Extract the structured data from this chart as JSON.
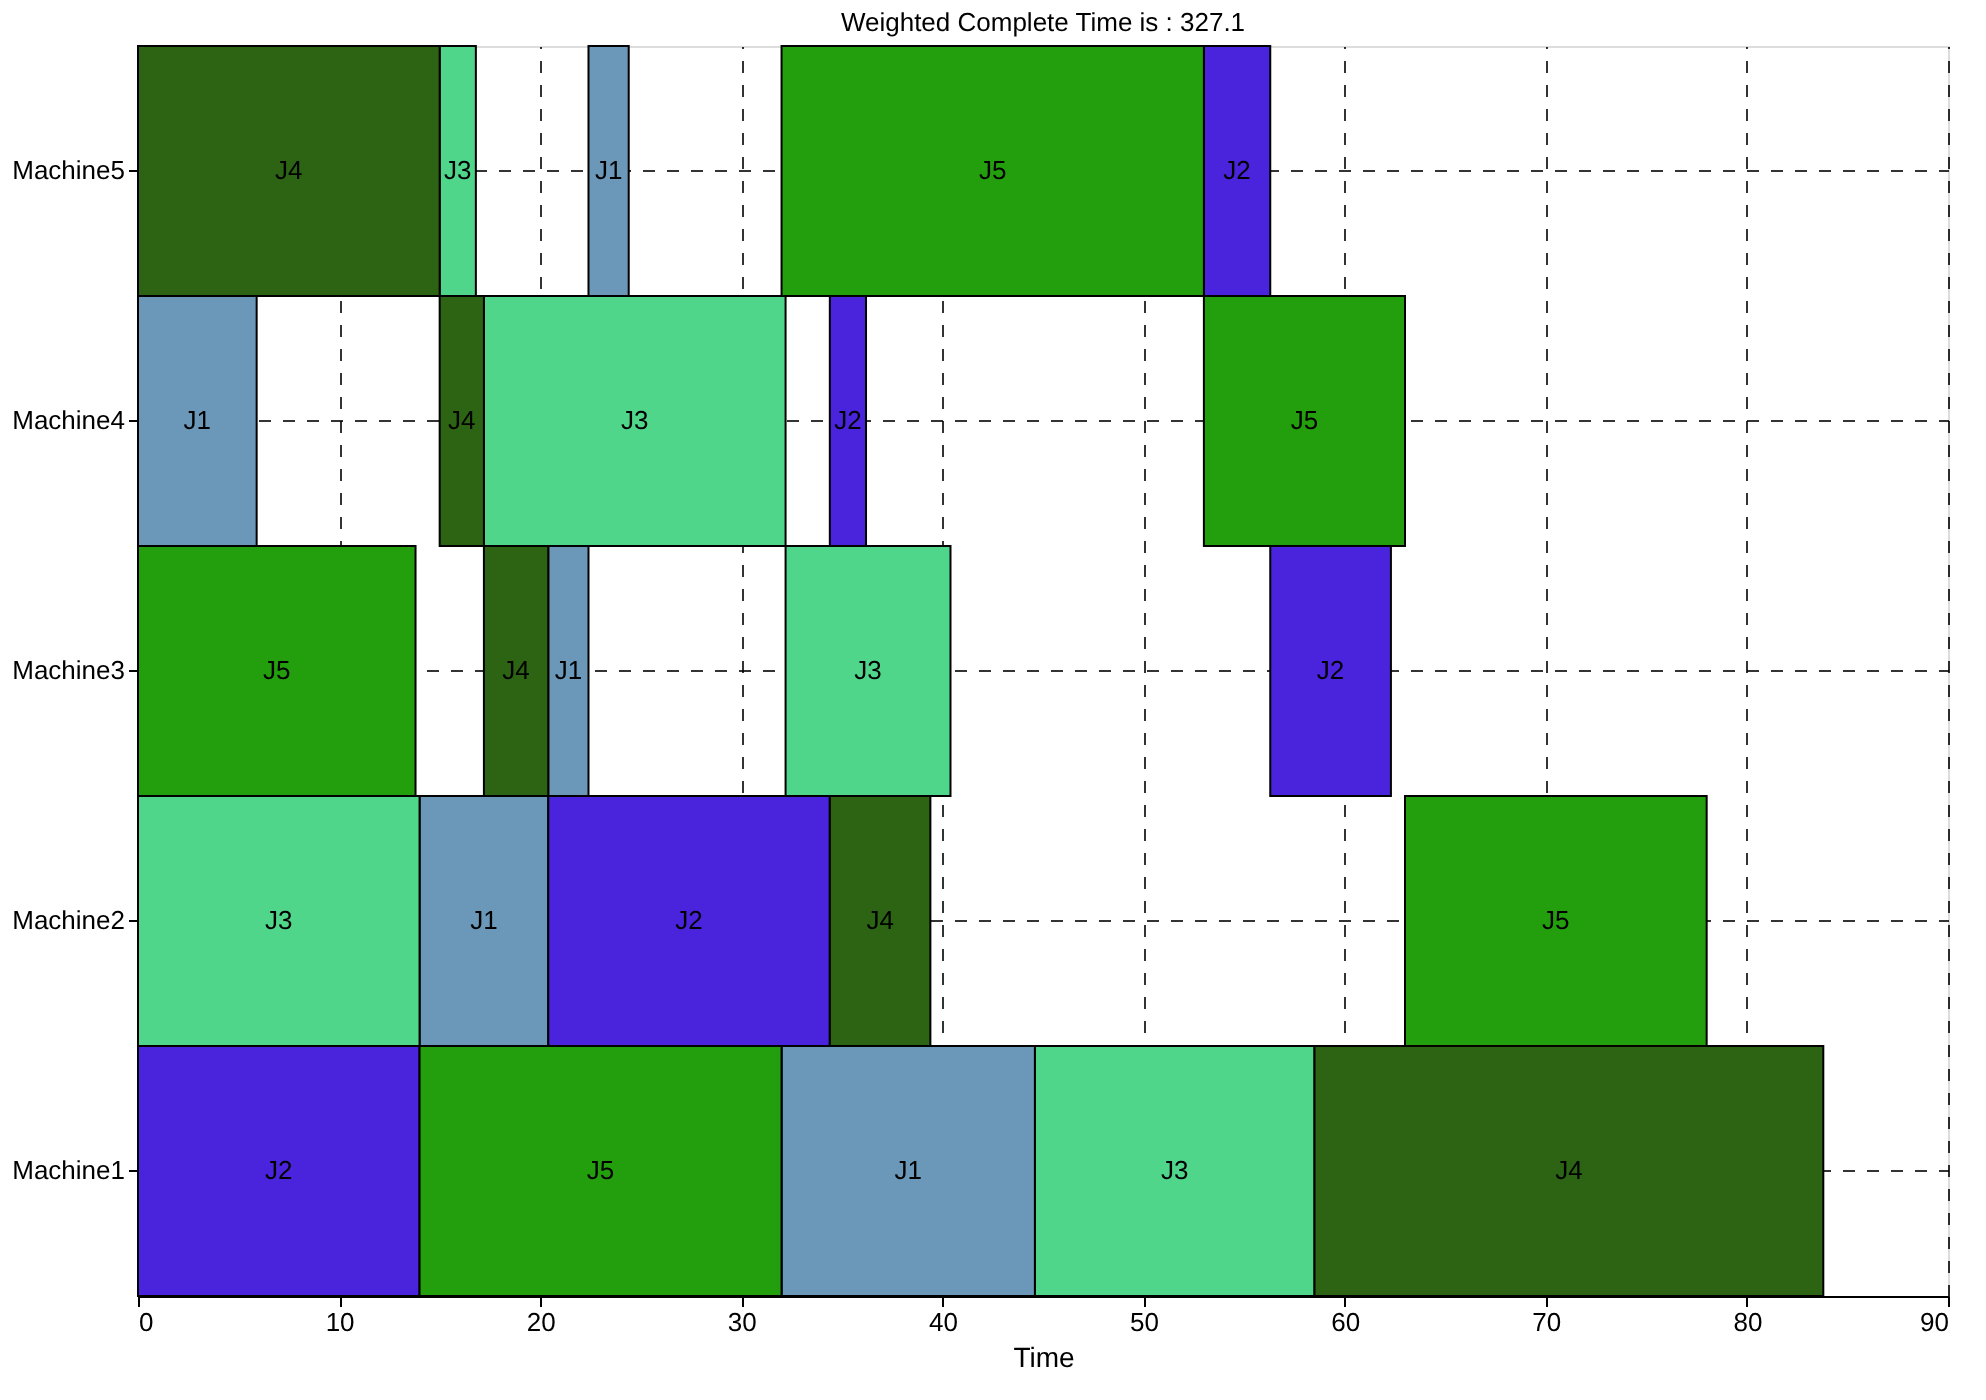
{
  "chart_data": {
    "type": "bar",
    "orientation": "horizontal",
    "title": "Weighted Complete Time is : 327.1",
    "xlabel": "Time",
    "categories": [
      "Machine5",
      "Machine4",
      "Machine3",
      "Machine2",
      "Machine1"
    ],
    "series": [
      {
        "name": "J1",
        "color": "#6b97b8",
        "values": [
          2.0,
          5.9,
          2.0,
          6.4,
          12.6
        ],
        "base": [
          22.4,
          0,
          20.4,
          14.0,
          32.0
        ]
      },
      {
        "name": "J2",
        "color": "#4a23dc",
        "values": [
          3.3,
          1.8,
          6.0,
          14.0,
          14.0
        ],
        "base": [
          53.0,
          34.4,
          56.3,
          20.4,
          0
        ]
      },
      {
        "name": "J3",
        "color": "#4fd68b",
        "values": [
          1.8,
          15.0,
          8.2,
          14.0,
          13.9
        ],
        "base": [
          15.0,
          17.2,
          32.2,
          0,
          44.6
        ]
      },
      {
        "name": "J4",
        "color": "#2c6414",
        "values": [
          15.0,
          2.2,
          3.2,
          5.0,
          25.3
        ],
        "base": [
          0,
          15.0,
          17.2,
          34.4,
          58.5
        ]
      },
      {
        "name": "J5",
        "color": "#239e0c",
        "values": [
          21.0,
          10.0,
          13.8,
          15.0,
          18.0
        ],
        "base": [
          32.0,
          53.0,
          0,
          63.0,
          14.0
        ]
      }
    ],
    "xlim": [
      0,
      90
    ],
    "xticks": [
      0,
      10,
      20,
      30,
      40,
      50,
      60,
      70,
      80,
      90
    ],
    "grid": true,
    "legend": false
  }
}
